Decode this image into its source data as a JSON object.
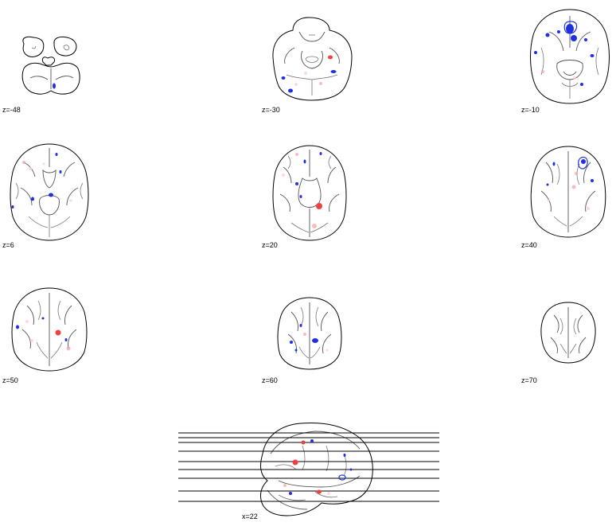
{
  "slices": [
    {
      "label": "z=-48"
    },
    {
      "label": "z=-30"
    },
    {
      "label": "z=-10"
    },
    {
      "label": "z=6"
    },
    {
      "label": "z=20"
    },
    {
      "label": "z=40"
    },
    {
      "label": "z=50"
    },
    {
      "label": "z=60"
    },
    {
      "label": "z=70"
    }
  ],
  "sagittal": {
    "label": "x=22"
  },
  "colors": {
    "negative": "#2030e0",
    "positive": "#f04040",
    "outline": "#000000"
  }
}
